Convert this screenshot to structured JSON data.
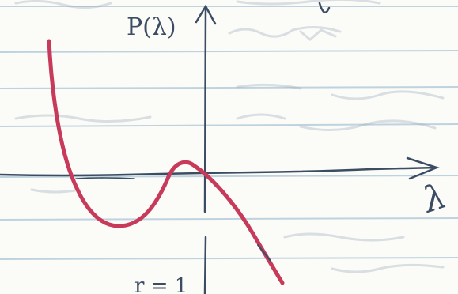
{
  "notebook_page": {
    "ink_color": "#3c4d63",
    "curve_color": "#c83a5a",
    "rule_color": "#8fb3c9",
    "y_axis_label": "P(λ)",
    "x_axis_label": "λ",
    "bottom_fragment": "r = 1"
  }
}
